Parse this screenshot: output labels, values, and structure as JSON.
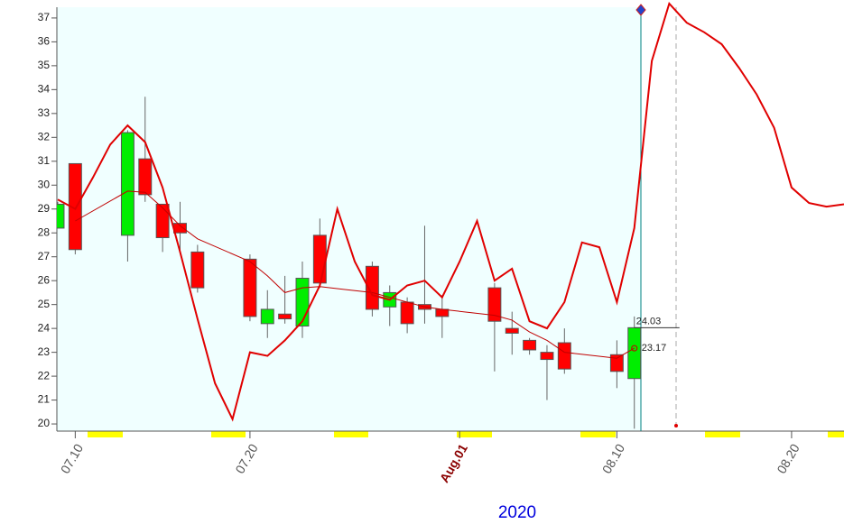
{
  "chart_data": {
    "type": "candlestick",
    "xlabel": "2020",
    "x": [
      "07.09",
      "07.10",
      "07.13",
      "07.14",
      "07.15",
      "07.16",
      "07.17",
      "07.20",
      "07.21",
      "07.22",
      "07.23",
      "07.24",
      "07.27",
      "07.28",
      "07.29",
      "07.30",
      "07.31",
      "08.03",
      "08.04",
      "08.05",
      "08.06",
      "08.07",
      "08.10",
      "08.11"
    ],
    "open": [
      28.2,
      30.9,
      27.9,
      31.1,
      29.2,
      28.4,
      27.2,
      26.9,
      24.2,
      24.6,
      24.1,
      27.9,
      26.6,
      24.9,
      25.1,
      25.0,
      24.8,
      25.7,
      24.0,
      23.5,
      23.0,
      23.4,
      22.9,
      21.9
    ],
    "high": [
      29.3,
      30.9,
      32.3,
      33.7,
      29.2,
      29.3,
      27.5,
      27.1,
      25.6,
      26.2,
      26.8,
      28.6,
      26.8,
      25.8,
      25.3,
      28.3,
      25.4,
      25.9,
      24.7,
      23.6,
      23.3,
      24.0,
      23.5,
      24.5
    ],
    "low": [
      28.2,
      27.1,
      26.8,
      29.3,
      27.2,
      27.2,
      25.5,
      24.3,
      23.6,
      24.2,
      23.6,
      25.7,
      24.5,
      24.1,
      23.8,
      24.2,
      23.6,
      22.2,
      22.9,
      22.9,
      21.0,
      22.1,
      21.5,
      19.8
    ],
    "close": [
      29.2,
      27.3,
      32.2,
      29.6,
      27.8,
      28.0,
      25.7,
      24.5,
      24.8,
      24.4,
      26.1,
      25.9,
      24.8,
      25.5,
      24.2,
      24.8,
      24.5,
      24.3,
      23.8,
      23.1,
      22.7,
      22.3,
      22.2,
      24.03
    ],
    "up_color": "#00ee00",
    "down_color": "#ff0000",
    "average": {
      "color": "#c00000",
      "x": [
        "07.10",
        "07.13",
        "07.14",
        "07.15",
        "07.16",
        "07.17",
        "07.20",
        "07.21",
        "07.22",
        "07.23",
        "07.24",
        "07.27",
        "07.28",
        "07.29",
        "07.30",
        "07.31",
        "08.03",
        "08.04",
        "08.05",
        "08.06",
        "08.07",
        "08.10",
        "08.11"
      ],
      "values": [
        28.5,
        29.75,
        29.7,
        29.05,
        28.3,
        27.75,
        26.8,
        26.2,
        25.5,
        25.7,
        25.75,
        25.5,
        25.3,
        25.1,
        24.9,
        24.8,
        24.55,
        24.35,
        23.85,
        23.5,
        23.0,
        22.75,
        23.17
      ]
    },
    "forecast": {
      "color": "#e00000",
      "x": [
        "07.09",
        "07.10",
        "07.11",
        "07.12",
        "07.13",
        "07.14",
        "07.15",
        "07.16",
        "07.17",
        "07.18",
        "07.19",
        "07.20",
        "07.21",
        "07.22",
        "07.23",
        "07.24",
        "07.25",
        "07.26",
        "07.27",
        "07.28",
        "07.29",
        "07.30",
        "07.31",
        "08.01",
        "08.02",
        "08.03",
        "08.04",
        "08.05",
        "08.06",
        "08.07",
        "08.08",
        "08.09",
        "08.10",
        "08.11",
        "08.12",
        "08.13",
        "08.14",
        "08.15",
        "08.16",
        "08.17",
        "08.18",
        "08.19",
        "08.20",
        "08.21",
        "08.22",
        "08.23"
      ],
      "values": [
        29.4,
        29.0,
        30.3,
        31.7,
        32.5,
        31.8,
        29.9,
        27.2,
        24.4,
        21.7,
        20.2,
        23.0,
        22.85,
        23.5,
        24.3,
        25.8,
        29.0,
        26.8,
        25.4,
        25.2,
        25.8,
        26.0,
        25.3,
        26.8,
        28.5,
        26.0,
        26.5,
        24.3,
        24.0,
        25.1,
        27.6,
        27.4,
        25.1,
        28.2,
        35.2,
        37.6,
        36.8,
        36.4,
        35.9,
        34.9,
        33.8,
        32.4,
        29.9,
        29.25,
        29.1,
        29.2
      ]
    },
    "xlim": [
      "07.09",
      "08.23"
    ],
    "xticks": [
      "07.10",
      "07.20",
      {
        "value": "08.01",
        "label": "Aug.01"
      },
      "08.10",
      "08.20"
    ],
    "ylim": [
      19.7,
      37.45
    ],
    "yticks": [
      20,
      21,
      22,
      23,
      24,
      25,
      26,
      27,
      28,
      29,
      30,
      31,
      32,
      33,
      34,
      35,
      36,
      37
    ]
  }
}
